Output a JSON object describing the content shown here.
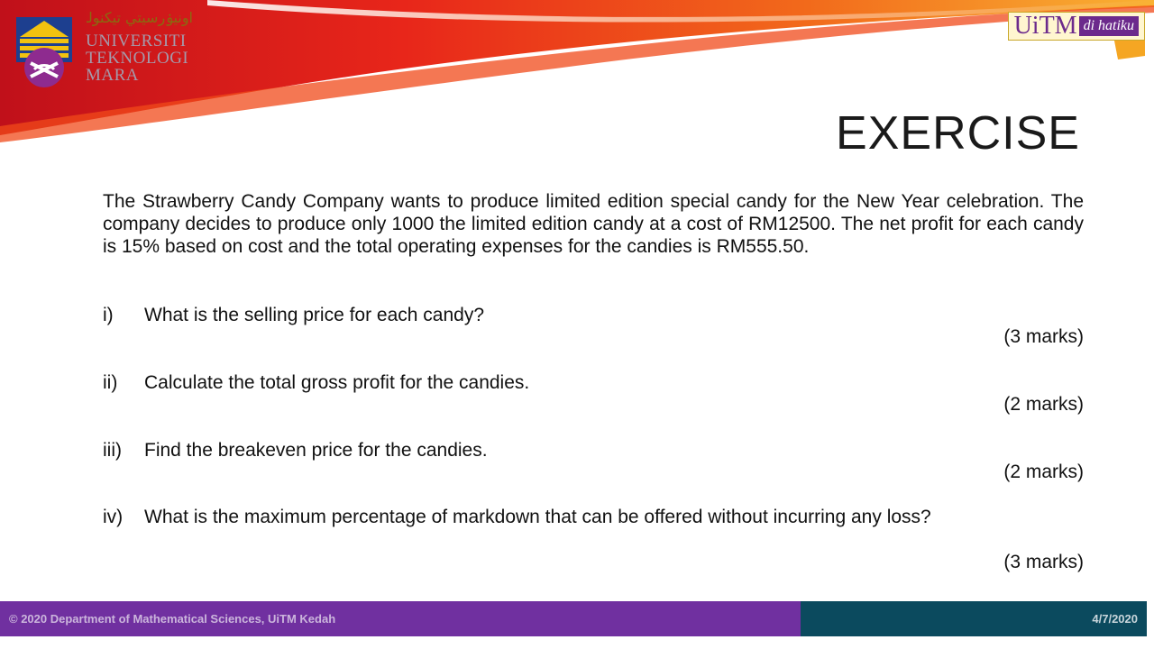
{
  "header": {
    "university_jawi": "اونيۏرسيتي تيکنولوݢي مارا",
    "university_name": [
      "UNIVERSITI",
      "TEKNOLOGI",
      "MARA"
    ],
    "brand_main": "UiTM",
    "brand_sub": "di hatiku",
    "colors": {
      "purple": "#6c2a8c",
      "gold": "#c9a82a",
      "red": "#d91e18",
      "orange": "#f5a623"
    }
  },
  "slide": {
    "title": "EXERCISE",
    "intro": "The Strawberry Candy Company wants to produce limited edition special candy for the New Year celebration. The company decides to produce only 1000 the limited edition candy at a cost of RM12500. The net profit for each candy is 15% based on cost and the total operating expenses for the candies is RM555.50.",
    "questions": [
      {
        "num": "i)",
        "text": "What is the selling price for each candy?",
        "marks": "(3 marks)"
      },
      {
        "num": "ii)",
        "text": "Calculate the total gross profit for the candies.",
        "marks": "(2 marks)"
      },
      {
        "num": "iii)",
        "text": "Find the breakeven price for the candies.",
        "marks": "(2 marks)"
      },
      {
        "num": "iv)",
        "text": "What is the maximum percentage of markdown that can be offered without incurring any loss?",
        "marks": "(3 marks)"
      }
    ]
  },
  "footer": {
    "copyright": "© 2020 Department of Mathematical Sciences, UiTM Kedah",
    "date": "4/7/2020",
    "colors": {
      "left": "#7030a0",
      "right": "#0b4a5e"
    }
  }
}
